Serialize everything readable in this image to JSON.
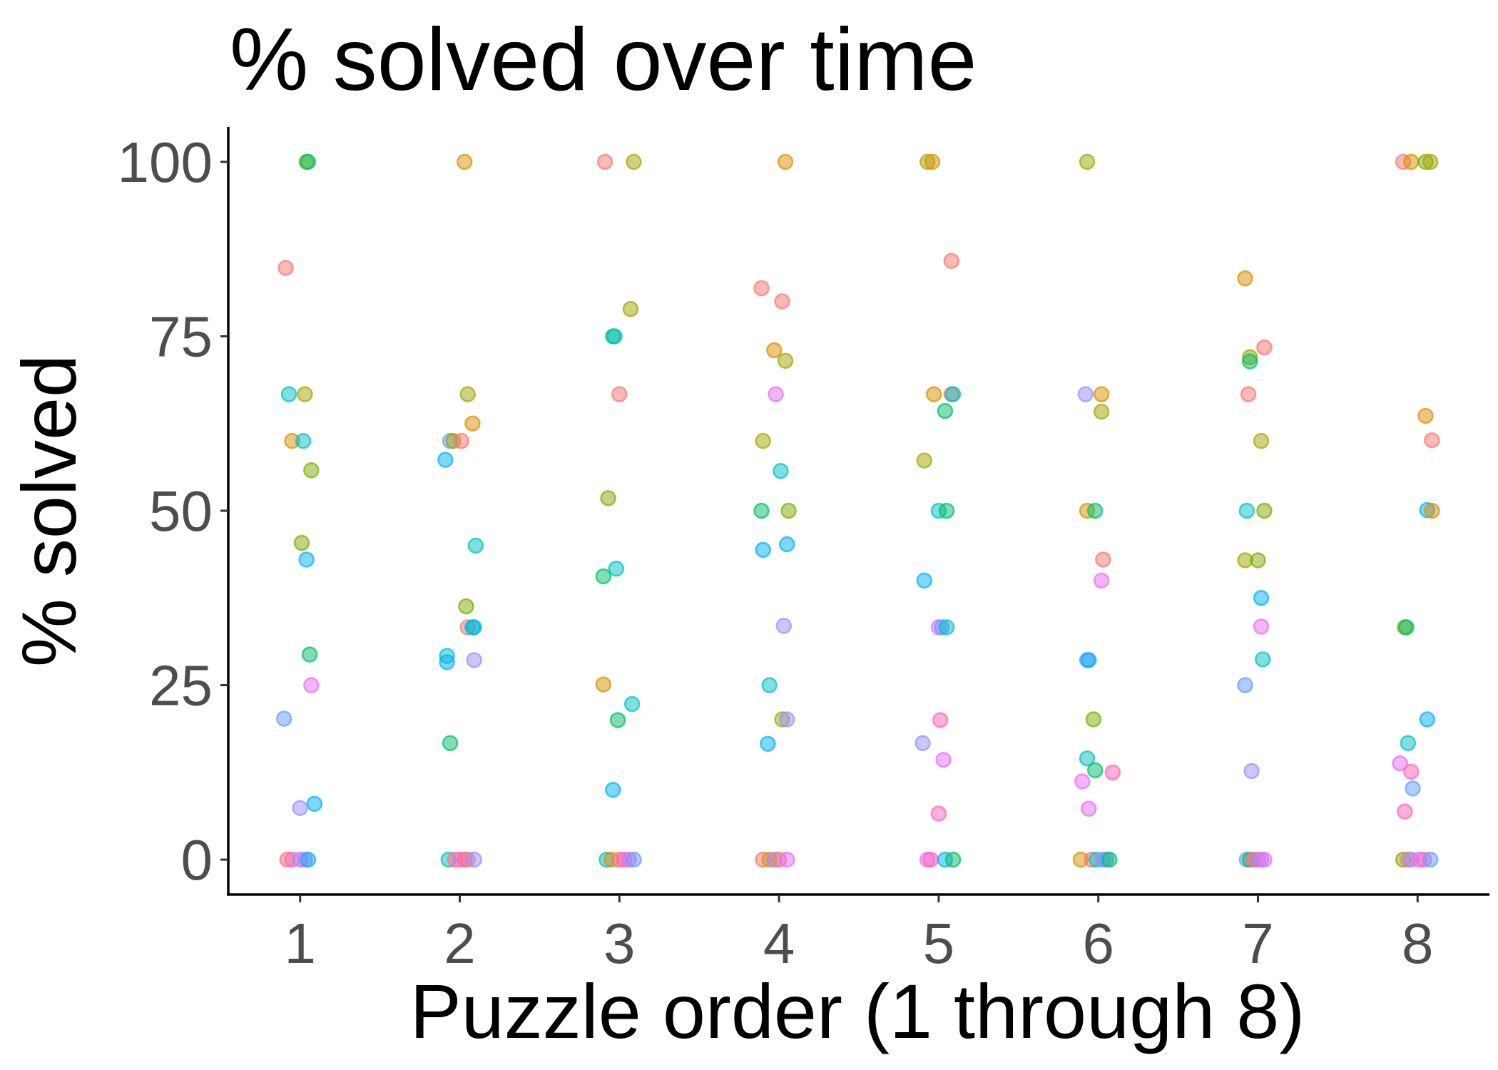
{
  "chart_data": {
    "type": "scatter",
    "title": "% solved over time",
    "xlabel": "Puzzle order (1 through 8)",
    "ylabel": "% solved",
    "x_categories": [
      1,
      2,
      3,
      4,
      5,
      6,
      7,
      8
    ],
    "xlim": [
      0.55,
      8.45
    ],
    "ylim": [
      -5,
      105
    ],
    "y_ticks": [
      0,
      25,
      50,
      75,
      100
    ],
    "grid": false,
    "legend": "none",
    "jitter": true,
    "point_opacity": 0.5,
    "points": [
      {
        "x": 1.04,
        "y": 100,
        "color": "#7CAE00"
      },
      {
        "x": 1.05,
        "y": 100,
        "color": "#00BE67"
      },
      {
        "x": 0.91,
        "y": 84.8,
        "color": "#F8766D"
      },
      {
        "x": 0.93,
        "y": 66.7,
        "color": "#00BFC4"
      },
      {
        "x": 1.03,
        "y": 66.7,
        "color": "#A3A500"
      },
      {
        "x": 0.95,
        "y": 60,
        "color": "#D89000"
      },
      {
        "x": 1.02,
        "y": 60,
        "color": "#00BFC4"
      },
      {
        "x": 1.07,
        "y": 55.8,
        "color": "#7CAE00"
      },
      {
        "x": 1.01,
        "y": 45.4,
        "color": "#7CAE00"
      },
      {
        "x": 1.04,
        "y": 43,
        "color": "#00B0F6"
      },
      {
        "x": 1.06,
        "y": 29.4,
        "color": "#00BE67"
      },
      {
        "x": 1.07,
        "y": 25,
        "color": "#E76BF3"
      },
      {
        "x": 0.9,
        "y": 20.2,
        "color": "#619CFF"
      },
      {
        "x": 1.09,
        "y": 8,
        "color": "#00B0F6"
      },
      {
        "x": 1.0,
        "y": 7.4,
        "color": "#9590FF"
      },
      {
        "x": 0.92,
        "y": 0,
        "color": "#F8766D"
      },
      {
        "x": 0.95,
        "y": 0,
        "color": "#FF62BC"
      },
      {
        "x": 1.0,
        "y": 0,
        "color": "#9590FF"
      },
      {
        "x": 1.03,
        "y": 0,
        "color": "#E76BF3"
      },
      {
        "x": 1.05,
        "y": 0,
        "color": "#00B0F6"
      },
      {
        "x": 2.03,
        "y": 100,
        "color": "#D89000"
      },
      {
        "x": 2.05,
        "y": 66.7,
        "color": "#A3A500"
      },
      {
        "x": 2.08,
        "y": 62.5,
        "color": "#D89000"
      },
      {
        "x": 1.94,
        "y": 60,
        "color": "#619CFF"
      },
      {
        "x": 1.96,
        "y": 60,
        "color": "#A3A500"
      },
      {
        "x": 2.01,
        "y": 60,
        "color": "#F8766D"
      },
      {
        "x": 1.91,
        "y": 57.3,
        "color": "#00B0F6"
      },
      {
        "x": 2.1,
        "y": 45,
        "color": "#00BFC4"
      },
      {
        "x": 2.04,
        "y": 36.3,
        "color": "#7CAE00"
      },
      {
        "x": 2.05,
        "y": 33.3,
        "color": "#F8766D"
      },
      {
        "x": 2.08,
        "y": 33.3,
        "color": "#00A9FF"
      },
      {
        "x": 2.09,
        "y": 33.3,
        "color": "#00BFC4"
      },
      {
        "x": 1.92,
        "y": 29.2,
        "color": "#00BFC4"
      },
      {
        "x": 1.92,
        "y": 28.3,
        "color": "#00B0F6"
      },
      {
        "x": 2.09,
        "y": 28.6,
        "color": "#9590FF"
      },
      {
        "x": 1.94,
        "y": 16.7,
        "color": "#00BE67"
      },
      {
        "x": 1.93,
        "y": 0,
        "color": "#00BFC4"
      },
      {
        "x": 1.97,
        "y": 0,
        "color": "#F8766D"
      },
      {
        "x": 2.0,
        "y": 0,
        "color": "#E76BF3"
      },
      {
        "x": 2.03,
        "y": 0,
        "color": "#FF62BC"
      },
      {
        "x": 2.05,
        "y": 0,
        "color": "#F8766D"
      },
      {
        "x": 2.09,
        "y": 0,
        "color": "#9590FF"
      },
      {
        "x": 2.91,
        "y": 100,
        "color": "#F8766D"
      },
      {
        "x": 3.09,
        "y": 100,
        "color": "#A3A500"
      },
      {
        "x": 3.07,
        "y": 78.9,
        "color": "#A3A500"
      },
      {
        "x": 2.96,
        "y": 75,
        "color": "#00BE67"
      },
      {
        "x": 2.97,
        "y": 75,
        "color": "#00BFC4"
      },
      {
        "x": 3.0,
        "y": 66.7,
        "color": "#F8766D"
      },
      {
        "x": 2.93,
        "y": 51.8,
        "color": "#7CAE00"
      },
      {
        "x": 2.98,
        "y": 41.7,
        "color": "#00BFC4"
      },
      {
        "x": 2.9,
        "y": 40.6,
        "color": "#00BE67"
      },
      {
        "x": 2.9,
        "y": 25.1,
        "color": "#D89000"
      },
      {
        "x": 3.08,
        "y": 22.3,
        "color": "#00BFC4"
      },
      {
        "x": 2.99,
        "y": 20,
        "color": "#00BE67"
      },
      {
        "x": 2.96,
        "y": 10,
        "color": "#00B0F6"
      },
      {
        "x": 2.92,
        "y": 0,
        "color": "#00BFC4"
      },
      {
        "x": 2.95,
        "y": 0,
        "color": "#D89000"
      },
      {
        "x": 3.0,
        "y": 0,
        "color": "#F8766D"
      },
      {
        "x": 3.03,
        "y": 0,
        "color": "#FF62BC"
      },
      {
        "x": 3.06,
        "y": 0,
        "color": "#E76BF3"
      },
      {
        "x": 3.09,
        "y": 0,
        "color": "#619CFF"
      },
      {
        "x": 4.04,
        "y": 100,
        "color": "#D89000"
      },
      {
        "x": 3.89,
        "y": 81.9,
        "color": "#F8766D"
      },
      {
        "x": 4.02,
        "y": 80,
        "color": "#F8766D"
      },
      {
        "x": 3.97,
        "y": 73,
        "color": "#D89000"
      },
      {
        "x": 4.04,
        "y": 71.5,
        "color": "#A3A500"
      },
      {
        "x": 3.98,
        "y": 66.7,
        "color": "#E76BF3"
      },
      {
        "x": 3.9,
        "y": 60,
        "color": "#A3A500"
      },
      {
        "x": 4.01,
        "y": 55.7,
        "color": "#00BFC4"
      },
      {
        "x": 3.89,
        "y": 50,
        "color": "#00BE67"
      },
      {
        "x": 4.06,
        "y": 50,
        "color": "#7CAE00"
      },
      {
        "x": 4.05,
        "y": 45.2,
        "color": "#00B0F6"
      },
      {
        "x": 3.9,
        "y": 44.4,
        "color": "#00B0F6"
      },
      {
        "x": 4.03,
        "y": 33.5,
        "color": "#9590FF"
      },
      {
        "x": 3.94,
        "y": 25,
        "color": "#00BFC4"
      },
      {
        "x": 4.02,
        "y": 20.1,
        "color": "#A3A500"
      },
      {
        "x": 4.05,
        "y": 20.1,
        "color": "#9590FF"
      },
      {
        "x": 3.93,
        "y": 16.6,
        "color": "#00B0F6"
      },
      {
        "x": 3.9,
        "y": 0,
        "color": "#F8766D"
      },
      {
        "x": 3.94,
        "y": 0,
        "color": "#D89000"
      },
      {
        "x": 3.97,
        "y": 0,
        "color": "#9590FF"
      },
      {
        "x": 4.0,
        "y": 0,
        "color": "#F8766D"
      },
      {
        "x": 4.05,
        "y": 0,
        "color": "#E76BF3"
      },
      {
        "x": 4.93,
        "y": 100,
        "color": "#A3A500"
      },
      {
        "x": 4.96,
        "y": 100,
        "color": "#D89000"
      },
      {
        "x": 5.08,
        "y": 85.8,
        "color": "#F8766D"
      },
      {
        "x": 4.97,
        "y": 66.7,
        "color": "#D89000"
      },
      {
        "x": 5.08,
        "y": 66.7,
        "color": "#F8766D"
      },
      {
        "x": 5.09,
        "y": 66.7,
        "color": "#00BFC4"
      },
      {
        "x": 5.04,
        "y": 64.3,
        "color": "#00BE67"
      },
      {
        "x": 4.91,
        "y": 57.2,
        "color": "#A3A500"
      },
      {
        "x": 5.0,
        "y": 50,
        "color": "#00BFC4"
      },
      {
        "x": 5.05,
        "y": 50,
        "color": "#00BE67"
      },
      {
        "x": 4.91,
        "y": 40,
        "color": "#00B0F6"
      },
      {
        "x": 5.0,
        "y": 33.3,
        "color": "#E76BF3"
      },
      {
        "x": 5.02,
        "y": 33.3,
        "color": "#619CFF"
      },
      {
        "x": 5.05,
        "y": 33.3,
        "color": "#00BFC4"
      },
      {
        "x": 5.01,
        "y": 20,
        "color": "#FF62BC"
      },
      {
        "x": 4.9,
        "y": 16.7,
        "color": "#9590FF"
      },
      {
        "x": 5.03,
        "y": 14.3,
        "color": "#E76BF3"
      },
      {
        "x": 5.0,
        "y": 6.6,
        "color": "#FF62BC"
      },
      {
        "x": 4.93,
        "y": 0,
        "color": "#E76BF3"
      },
      {
        "x": 4.95,
        "y": 0,
        "color": "#FF62BC"
      },
      {
        "x": 5.04,
        "y": 0,
        "color": "#00B0F6"
      },
      {
        "x": 5.09,
        "y": 0,
        "color": "#00BE67"
      },
      {
        "x": 5.93,
        "y": 100,
        "color": "#A3A500"
      },
      {
        "x": 5.92,
        "y": 66.7,
        "color": "#9590FF"
      },
      {
        "x": 6.02,
        "y": 66.7,
        "color": "#D89000"
      },
      {
        "x": 6.02,
        "y": 64.2,
        "color": "#A3A500"
      },
      {
        "x": 5.93,
        "y": 50,
        "color": "#D89000"
      },
      {
        "x": 5.98,
        "y": 50,
        "color": "#00BE67"
      },
      {
        "x": 6.03,
        "y": 43,
        "color": "#F8766D"
      },
      {
        "x": 6.02,
        "y": 40,
        "color": "#E76BF3"
      },
      {
        "x": 5.93,
        "y": 28.6,
        "color": "#619CFF"
      },
      {
        "x": 5.94,
        "y": 28.6,
        "color": "#00A9FF"
      },
      {
        "x": 5.97,
        "y": 20.1,
        "color": "#7CAE00"
      },
      {
        "x": 5.93,
        "y": 14.5,
        "color": "#00BFC4"
      },
      {
        "x": 5.98,
        "y": 12.8,
        "color": "#00BE67"
      },
      {
        "x": 6.09,
        "y": 12.5,
        "color": "#FF62BC"
      },
      {
        "x": 5.9,
        "y": 11.2,
        "color": "#E76BF3"
      },
      {
        "x": 5.94,
        "y": 7.3,
        "color": "#E76BF3"
      },
      {
        "x": 5.89,
        "y": 0,
        "color": "#D89000"
      },
      {
        "x": 5.96,
        "y": 0,
        "color": "#F8766D"
      },
      {
        "x": 5.99,
        "y": 0,
        "color": "#00BFC4"
      },
      {
        "x": 6.03,
        "y": 0,
        "color": "#9590FF"
      },
      {
        "x": 6.05,
        "y": 0,
        "color": "#619CFF"
      },
      {
        "x": 6.07,
        "y": 0,
        "color": "#00BE67"
      },
      {
        "x": 6.92,
        "y": 83.3,
        "color": "#D89000"
      },
      {
        "x": 7.04,
        "y": 73.4,
        "color": "#F8766D"
      },
      {
        "x": 6.95,
        "y": 72,
        "color": "#A3A500"
      },
      {
        "x": 6.95,
        "y": 71.4,
        "color": "#00BE67"
      },
      {
        "x": 6.94,
        "y": 66.7,
        "color": "#F8766D"
      },
      {
        "x": 7.02,
        "y": 60,
        "color": "#A3A500"
      },
      {
        "x": 6.93,
        "y": 50,
        "color": "#00BFC4"
      },
      {
        "x": 7.04,
        "y": 50,
        "color": "#7CAE00"
      },
      {
        "x": 6.92,
        "y": 42.9,
        "color": "#A3A500"
      },
      {
        "x": 7.0,
        "y": 42.9,
        "color": "#7CAE00"
      },
      {
        "x": 7.02,
        "y": 37.5,
        "color": "#00B0F6"
      },
      {
        "x": 7.02,
        "y": 33.4,
        "color": "#E76BF3"
      },
      {
        "x": 7.03,
        "y": 28.7,
        "color": "#00BFC4"
      },
      {
        "x": 6.92,
        "y": 25,
        "color": "#619CFF"
      },
      {
        "x": 6.96,
        "y": 12.7,
        "color": "#9590FF"
      },
      {
        "x": 6.93,
        "y": 0,
        "color": "#619CFF"
      },
      {
        "x": 6.95,
        "y": 0,
        "color": "#00BE67"
      },
      {
        "x": 6.97,
        "y": 0,
        "color": "#F8766D"
      },
      {
        "x": 7.0,
        "y": 0,
        "color": "#FF62BC"
      },
      {
        "x": 7.02,
        "y": 0,
        "color": "#9590FF"
      },
      {
        "x": 7.04,
        "y": 0,
        "color": "#E76BF3"
      },
      {
        "x": 7.91,
        "y": 100,
        "color": "#F8766D"
      },
      {
        "x": 7.96,
        "y": 100,
        "color": "#D89000"
      },
      {
        "x": 8.05,
        "y": 100,
        "color": "#7CAE00"
      },
      {
        "x": 8.08,
        "y": 100,
        "color": "#A3A500"
      },
      {
        "x": 8.05,
        "y": 63.6,
        "color": "#D89000"
      },
      {
        "x": 8.09,
        "y": 60.1,
        "color": "#F8766D"
      },
      {
        "x": 8.06,
        "y": 50.1,
        "color": "#00B0F6"
      },
      {
        "x": 8.09,
        "y": 50,
        "color": "#D89000"
      },
      {
        "x": 7.92,
        "y": 33.3,
        "color": "#7CAE00"
      },
      {
        "x": 7.93,
        "y": 33.3,
        "color": "#00BE67"
      },
      {
        "x": 8.06,
        "y": 20.1,
        "color": "#00B0F6"
      },
      {
        "x": 7.94,
        "y": 16.7,
        "color": "#00BFC4"
      },
      {
        "x": 7.89,
        "y": 13.8,
        "color": "#E76BF3"
      },
      {
        "x": 7.96,
        "y": 12.6,
        "color": "#FF62BC"
      },
      {
        "x": 7.97,
        "y": 10.2,
        "color": "#619CFF"
      },
      {
        "x": 7.92,
        "y": 6.9,
        "color": "#FF62BC"
      },
      {
        "x": 7.91,
        "y": 0,
        "color": "#7CAE00"
      },
      {
        "x": 7.94,
        "y": 0,
        "color": "#F8766D"
      },
      {
        "x": 7.96,
        "y": 0,
        "color": "#9590FF"
      },
      {
        "x": 8.01,
        "y": 0,
        "color": "#E76BF3"
      },
      {
        "x": 8.04,
        "y": 0,
        "color": "#FF62BC"
      },
      {
        "x": 8.08,
        "y": 0,
        "color": "#619CFF"
      }
    ]
  }
}
